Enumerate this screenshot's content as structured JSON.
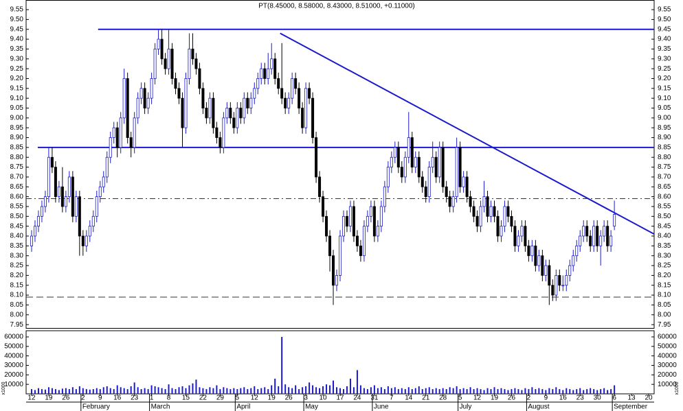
{
  "chart_data": {
    "type": "candlestick",
    "title": "PT(8.45000, 8.58000, 8.43000, 8.51000, +0.11000)",
    "xlim": [
      -1.6,
      181.6
    ],
    "xticks": [
      {
        "value": 0,
        "label": "12"
      },
      {
        "value": 5,
        "label": "19"
      },
      {
        "value": 10,
        "label": "26"
      },
      {
        "value": 15,
        "label": "2"
      },
      {
        "value": 20,
        "label": "9"
      },
      {
        "value": 25,
        "label": "16"
      },
      {
        "value": 30,
        "label": "23"
      },
      {
        "value": 35,
        "label": "1"
      },
      {
        "value": 40,
        "label": "8"
      },
      {
        "value": 45,
        "label": "15"
      },
      {
        "value": 50,
        "label": "22"
      },
      {
        "value": 55,
        "label": "29"
      },
      {
        "value": 60,
        "label": "5"
      },
      {
        "value": 65,
        "label": "12"
      },
      {
        "value": 70,
        "label": "19"
      },
      {
        "value": 75,
        "label": "26"
      },
      {
        "value": 80,
        "label": "3"
      },
      {
        "value": 85,
        "label": "10"
      },
      {
        "value": 90,
        "label": "17"
      },
      {
        "value": 95,
        "label": "24"
      },
      {
        "value": 100,
        "label": "31"
      },
      {
        "value": 105,
        "label": "7"
      },
      {
        "value": 110,
        "label": "14"
      },
      {
        "value": 115,
        "label": "21"
      },
      {
        "value": 120,
        "label": "28"
      },
      {
        "value": 125,
        "label": "5"
      },
      {
        "value": 130,
        "label": "12"
      },
      {
        "value": 135,
        "label": "19"
      },
      {
        "value": 140,
        "label": "26"
      },
      {
        "value": 145,
        "label": "2"
      },
      {
        "value": 150,
        "label": "9"
      },
      {
        "value": 155,
        "label": "16"
      },
      {
        "value": 160,
        "label": "23"
      },
      {
        "value": 165,
        "label": "30"
      },
      {
        "value": 170,
        "label": "6"
      },
      {
        "value": 175,
        "label": "13"
      },
      {
        "value": 180,
        "label": "20"
      }
    ],
    "months": [
      {
        "value": 15,
        "label": "February"
      },
      {
        "value": 35,
        "label": "March"
      },
      {
        "value": 60,
        "label": "April"
      },
      {
        "value": 80,
        "label": "May"
      },
      {
        "value": 100,
        "label": "June"
      },
      {
        "value": 125,
        "label": "July"
      },
      {
        "value": 145,
        "label": "August"
      },
      {
        "value": 170,
        "label": "September"
      }
    ],
    "ylim": [
      7.933,
      9.599
    ],
    "yticks": [
      7.95,
      {
        "value": 8,
        "label": "8.00"
      },
      8.05,
      {
        "value": 8.1,
        "label": "8.10"
      },
      8.15,
      {
        "value": 8.2,
        "label": "8.20"
      },
      8.25,
      {
        "value": 8.3,
        "label": "8.30"
      },
      8.35,
      {
        "value": 8.4,
        "label": "8.40"
      },
      8.45,
      {
        "value": 8.5,
        "label": "8.50"
      },
      8.55,
      {
        "value": 8.6,
        "label": "8.60"
      },
      8.65,
      {
        "value": 8.7,
        "label": "8.70"
      },
      8.75,
      {
        "value": 8.8,
        "label": "8.80"
      },
      8.85,
      {
        "value": 8.9,
        "label": "8.90"
      },
      8.95,
      {
        "value": 9,
        "label": "9.00"
      },
      9.05,
      {
        "value": 9.1,
        "label": "9.10"
      },
      9.15,
      {
        "value": 9.2,
        "label": "9.20"
      },
      9.25,
      {
        "value": 9.3,
        "label": "9.30"
      },
      9.35,
      {
        "value": 9.4,
        "label": "9.40"
      },
      9.45,
      {
        "value": 9.5,
        "label": "9.50"
      },
      9.55
    ],
    "up_color": "#ffffff",
    "down_color": "#000000",
    "line_color": "#1a1acc",
    "ohlc": [
      [
        8.35,
        8.43,
        8.32,
        8.4
      ],
      [
        8.4,
        8.48,
        8.37,
        8.45
      ],
      [
        8.45,
        8.53,
        8.42,
        8.5
      ],
      [
        8.5,
        8.58,
        8.47,
        8.55
      ],
      [
        8.55,
        8.63,
        8.52,
        8.6
      ],
      [
        8.6,
        8.85,
        8.57,
        8.8
      ],
      [
        8.8,
        8.85,
        8.72,
        8.75
      ],
      [
        8.75,
        8.78,
        8.57,
        8.6
      ],
      [
        8.6,
        8.68,
        8.57,
        8.65
      ],
      [
        8.65,
        8.75,
        8.52,
        8.55
      ],
      [
        8.55,
        8.63,
        8.52,
        8.6
      ],
      [
        8.6,
        8.73,
        8.57,
        8.7
      ],
      [
        8.7,
        8.73,
        8.47,
        8.5
      ],
      [
        8.5,
        8.63,
        8.47,
        8.6
      ],
      [
        8.6,
        8.63,
        8.3,
        8.4
      ],
      [
        8.4,
        8.43,
        8.3,
        8.35
      ],
      [
        8.35,
        8.43,
        8.32,
        8.4
      ],
      [
        8.4,
        8.48,
        8.37,
        8.45
      ],
      [
        8.45,
        8.53,
        8.42,
        8.5
      ],
      [
        8.5,
        8.63,
        8.47,
        8.6
      ],
      [
        8.6,
        8.68,
        8.57,
        8.65
      ],
      [
        8.65,
        8.73,
        8.62,
        8.7
      ],
      [
        8.7,
        8.83,
        8.67,
        8.8
      ],
      [
        8.8,
        8.93,
        8.77,
        8.9
      ],
      [
        8.9,
        8.98,
        8.87,
        8.95
      ],
      [
        8.95,
        8.98,
        8.8,
        8.85
      ],
      [
        8.85,
        9.03,
        8.82,
        9.0
      ],
      [
        9.0,
        9.25,
        8.97,
        9.2
      ],
      [
        9.2,
        9.23,
        8.87,
        8.9
      ],
      [
        8.9,
        8.93,
        8.8,
        8.85
      ],
      [
        8.85,
        9.03,
        8.82,
        9.0
      ],
      [
        9.0,
        9.13,
        8.97,
        9.1
      ],
      [
        9.1,
        9.18,
        9.07,
        9.15
      ],
      [
        9.15,
        9.18,
        9.02,
        9.05
      ],
      [
        9.05,
        9.13,
        9.02,
        9.1
      ],
      [
        9.1,
        9.23,
        9.07,
        9.2
      ],
      [
        9.2,
        9.38,
        9.17,
        9.35
      ],
      [
        9.35,
        9.45,
        9.32,
        9.4
      ],
      [
        9.4,
        9.45,
        9.27,
        9.3
      ],
      [
        9.3,
        9.33,
        9.22,
        9.25
      ],
      [
        9.25,
        9.45,
        9.22,
        9.35
      ],
      [
        9.35,
        9.38,
        9.17,
        9.2
      ],
      [
        9.2,
        9.23,
        9.12,
        9.15
      ],
      [
        9.15,
        9.18,
        9.07,
        9.1
      ],
      [
        9.1,
        9.13,
        8.85,
        8.95
      ],
      [
        8.95,
        9.23,
        8.92,
        9.2
      ],
      [
        9.2,
        9.43,
        9.17,
        9.35
      ],
      [
        9.35,
        9.43,
        9.27,
        9.3
      ],
      [
        9.3,
        9.33,
        9.22,
        9.25
      ],
      [
        9.25,
        9.28,
        9.12,
        9.15
      ],
      [
        9.15,
        9.18,
        9.02,
        9.05
      ],
      [
        9.05,
        9.08,
        8.97,
        9.0
      ],
      [
        9.0,
        9.13,
        8.97,
        9.1
      ],
      [
        9.1,
        9.13,
        8.92,
        8.95
      ],
      [
        8.95,
        8.98,
        8.87,
        8.9
      ],
      [
        8.9,
        8.93,
        8.82,
        8.85
      ],
      [
        8.85,
        9.03,
        8.82,
        9.0
      ],
      [
        9.0,
        9.08,
        8.97,
        9.05
      ],
      [
        9.05,
        9.08,
        8.97,
        9.0
      ],
      [
        9.0,
        9.03,
        8.92,
        8.95
      ],
      [
        8.95,
        9.08,
        8.92,
        9.05
      ],
      [
        9.05,
        9.08,
        8.97,
        9.0
      ],
      [
        9.0,
        9.13,
        8.97,
        9.1
      ],
      [
        9.1,
        9.13,
        9.02,
        9.05
      ],
      [
        9.05,
        9.13,
        9.02,
        9.1
      ],
      [
        9.1,
        9.18,
        9.07,
        9.15
      ],
      [
        9.15,
        9.23,
        9.12,
        9.2
      ],
      [
        9.2,
        9.28,
        9.17,
        9.25
      ],
      [
        9.25,
        9.28,
        9.17,
        9.2
      ],
      [
        9.2,
        9.33,
        9.17,
        9.25
      ],
      [
        9.25,
        9.38,
        9.22,
        9.3
      ],
      [
        9.3,
        9.33,
        9.17,
        9.2
      ],
      [
        9.2,
        9.23,
        9.12,
        9.15
      ],
      [
        9.15,
        9.38,
        9.07,
        9.1
      ],
      [
        9.1,
        9.13,
        9.02,
        9.05
      ],
      [
        9.05,
        9.13,
        9.02,
        9.1
      ],
      [
        9.1,
        9.23,
        9.07,
        9.2
      ],
      [
        9.2,
        9.23,
        9.12,
        9.15
      ],
      [
        9.15,
        9.18,
        9.02,
        9.05
      ],
      [
        9.05,
        9.08,
        8.92,
        8.95
      ],
      [
        8.95,
        9.18,
        8.92,
        9.15
      ],
      [
        9.15,
        9.18,
        9.07,
        9.1
      ],
      [
        9.1,
        9.13,
        8.87,
        8.9
      ],
      [
        8.9,
        8.93,
        8.67,
        8.7
      ],
      [
        8.7,
        8.73,
        8.57,
        8.6
      ],
      [
        8.6,
        8.63,
        8.47,
        8.5
      ],
      [
        8.5,
        8.53,
        8.37,
        8.4
      ],
      [
        8.4,
        8.43,
        8.22,
        8.3
      ],
      [
        8.3,
        8.33,
        8.05,
        8.15
      ],
      [
        8.15,
        8.23,
        8.12,
        8.2
      ],
      [
        8.2,
        8.43,
        8.17,
        8.4
      ],
      [
        8.4,
        8.53,
        8.37,
        8.5
      ],
      [
        8.5,
        8.53,
        8.42,
        8.45
      ],
      [
        8.45,
        8.58,
        8.42,
        8.55
      ],
      [
        8.55,
        8.58,
        8.37,
        8.4
      ],
      [
        8.4,
        8.43,
        8.32,
        8.35
      ],
      [
        8.35,
        8.38,
        8.27,
        8.3
      ],
      [
        8.3,
        8.48,
        8.27,
        8.45
      ],
      [
        8.45,
        8.53,
        8.42,
        8.5
      ],
      [
        8.5,
        8.58,
        8.47,
        8.55
      ],
      [
        8.55,
        8.58,
        8.37,
        8.4
      ],
      [
        8.4,
        8.48,
        8.37,
        8.45
      ],
      [
        8.45,
        8.58,
        8.42,
        8.55
      ],
      [
        8.55,
        8.68,
        8.52,
        8.65
      ],
      [
        8.65,
        8.78,
        8.62,
        8.75
      ],
      [
        8.75,
        8.83,
        8.72,
        8.8
      ],
      [
        8.8,
        8.88,
        8.77,
        8.85
      ],
      [
        8.85,
        8.88,
        8.72,
        8.75
      ],
      [
        8.75,
        8.78,
        8.67,
        8.7
      ],
      [
        8.7,
        8.83,
        8.67,
        8.8
      ],
      [
        8.8,
        9.03,
        8.77,
        8.9
      ],
      [
        8.9,
        8.93,
        8.72,
        8.75
      ],
      [
        8.75,
        8.83,
        8.72,
        8.8
      ],
      [
        8.8,
        8.83,
        8.67,
        8.7
      ],
      [
        8.7,
        8.73,
        8.62,
        8.65
      ],
      [
        8.65,
        8.68,
        8.57,
        8.6
      ],
      [
        8.6,
        8.78,
        8.57,
        8.75
      ],
      [
        8.75,
        8.88,
        8.72,
        8.8
      ],
      [
        8.8,
        8.83,
        8.67,
        8.7
      ],
      [
        8.7,
        8.88,
        8.67,
        8.85
      ],
      [
        8.85,
        8.88,
        8.62,
        8.65
      ],
      [
        8.65,
        8.68,
        8.57,
        8.6
      ],
      [
        8.6,
        8.63,
        8.52,
        8.55
      ],
      [
        8.55,
        8.63,
        8.52,
        8.6
      ],
      [
        8.6,
        8.9,
        8.57,
        8.85
      ],
      [
        8.85,
        8.88,
        8.62,
        8.65
      ],
      [
        8.65,
        8.73,
        8.62,
        8.7
      ],
      [
        8.7,
        8.73,
        8.57,
        8.6
      ],
      [
        8.6,
        8.63,
        8.52,
        8.55
      ],
      [
        8.55,
        8.58,
        8.47,
        8.5
      ],
      [
        8.5,
        8.53,
        8.42,
        8.45
      ],
      [
        8.45,
        8.58,
        8.42,
        8.55
      ],
      [
        8.55,
        8.68,
        8.52,
        8.6
      ],
      [
        8.6,
        8.63,
        8.47,
        8.5
      ],
      [
        8.5,
        8.58,
        8.47,
        8.55
      ],
      [
        8.55,
        8.58,
        8.47,
        8.5
      ],
      [
        8.5,
        8.53,
        8.37,
        8.4
      ],
      [
        8.4,
        8.48,
        8.37,
        8.45
      ],
      [
        8.45,
        8.58,
        8.42,
        8.55
      ],
      [
        8.55,
        8.58,
        8.47,
        8.5
      ],
      [
        8.5,
        8.53,
        8.42,
        8.45
      ],
      [
        8.45,
        8.48,
        8.32,
        8.35
      ],
      [
        8.35,
        8.43,
        8.32,
        8.4
      ],
      [
        8.4,
        8.48,
        8.37,
        8.45
      ],
      [
        8.45,
        8.48,
        8.32,
        8.35
      ],
      [
        8.35,
        8.38,
        8.27,
        8.3
      ],
      [
        8.3,
        8.38,
        8.27,
        8.35
      ],
      [
        8.35,
        8.38,
        8.22,
        8.25
      ],
      [
        8.25,
        8.33,
        8.22,
        8.3
      ],
      [
        8.3,
        8.33,
        8.17,
        8.2
      ],
      [
        8.2,
        8.28,
        8.17,
        8.25
      ],
      [
        8.25,
        8.28,
        8.05,
        8.15
      ],
      [
        8.15,
        8.18,
        8.07,
        8.1
      ],
      [
        8.1,
        8.23,
        8.07,
        8.2
      ],
      [
        8.2,
        8.23,
        8.12,
        8.15
      ],
      [
        8.15,
        8.2,
        8.12,
        8.15
      ],
      [
        8.15,
        8.23,
        8.12,
        8.2
      ],
      [
        8.2,
        8.28,
        8.17,
        8.25
      ],
      [
        8.25,
        8.33,
        8.22,
        8.3
      ],
      [
        8.3,
        8.38,
        8.27,
        8.35
      ],
      [
        8.35,
        8.43,
        8.32,
        8.4
      ],
      [
        8.4,
        8.48,
        8.37,
        8.45
      ],
      [
        8.45,
        8.48,
        8.37,
        8.4
      ],
      [
        8.4,
        8.43,
        8.32,
        8.35
      ],
      [
        8.35,
        8.48,
        8.32,
        8.45
      ],
      [
        8.45,
        8.48,
        8.32,
        8.35
      ],
      [
        8.35,
        8.43,
        8.25,
        8.4
      ],
      [
        8.4,
        8.48,
        8.37,
        8.45
      ],
      [
        8.45,
        8.48,
        8.32,
        8.35
      ],
      [
        8.35,
        8.43,
        8.32,
        8.4
      ],
      [
        8.45,
        8.58,
        8.43,
        8.51
      ]
    ],
    "levels": [
      {
        "value": 9.45,
        "start": 19.4,
        "style": "solid"
      },
      {
        "value": 8.85,
        "start": 1.8,
        "style": "solid"
      },
      {
        "value": 8.59,
        "style": "dashdot"
      },
      {
        "value": 8.09,
        "style": "dashed"
      }
    ],
    "trendline": {
      "x": [
        72.5,
        181.6
      ],
      "y": [
        9.43,
        8.41
      ]
    },
    "volume": [
      5000,
      4000,
      6000,
      5000,
      4500,
      7000,
      6000,
      5000,
      4000,
      5500,
      6000,
      5000,
      7000,
      5000,
      8000,
      6000,
      5000,
      4500,
      5000,
      6000,
      5000,
      7000,
      8000,
      6000,
      5000,
      9000,
      7000,
      6000,
      5000,
      8000,
      12000,
      7000,
      5000,
      6000,
      5000,
      9000,
      8000,
      7000,
      6000,
      5000,
      10000,
      6000,
      5000,
      7000,
      8000,
      6000,
      9000,
      11000,
      15000,
      7000,
      6000,
      5000,
      7000,
      6000,
      9000,
      5000,
      7000,
      6000,
      5000,
      6000,
      5000,
      6000,
      7000,
      5000,
      6000,
      8000,
      5000,
      6000,
      7000,
      5000,
      9000,
      16000,
      8000,
      60000,
      10000,
      7000,
      6000,
      9000,
      5000,
      7000,
      8000,
      12000,
      9000,
      7000,
      6000,
      8000,
      10000,
      9000,
      14000,
      7000,
      6000,
      5000,
      8000,
      16000,
      7000,
      25000,
      9000,
      6000,
      5000,
      7000,
      9000,
      6000,
      7000,
      5000,
      8000,
      6000,
      7000,
      5000,
      6000,
      5000,
      7000,
      5000,
      6000,
      8000,
      5000,
      6000,
      7000,
      5000,
      6000,
      5000,
      6000,
      5000,
      7000,
      6000,
      8000,
      5000,
      6000,
      5000,
      7000,
      5000,
      6000,
      5000,
      4000,
      6000,
      5000,
      7000,
      5000,
      6000,
      5000,
      4000,
      5000,
      6000,
      5000,
      4000,
      6000,
      5000,
      7000,
      5000,
      6000,
      5000,
      4000,
      6000,
      5000,
      7000,
      5000,
      4000,
      6000,
      5000,
      4000,
      5000,
      6000,
      4000,
      5000,
      6000,
      5000,
      4000,
      5000,
      6000,
      4000,
      5000,
      9000
    ],
    "volume_color": "#1a1acc",
    "vlim": [
      0,
      66500
    ],
    "vticks": [
      10000,
      20000,
      30000,
      40000,
      50000,
      60000
    ],
    "volume_unit": "x1000"
  }
}
